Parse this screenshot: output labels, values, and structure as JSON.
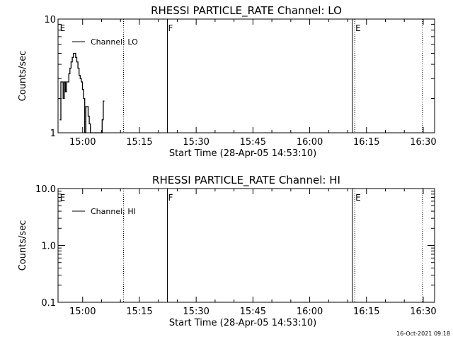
{
  "footer_timestamp": "16-Oct-2021 09:18",
  "chart_data": [
    {
      "type": "line",
      "title": "RHESSI PARTICLE_RATE Channel: LO",
      "xlabel": "Start Time (28-Apr-05 14:53:10)",
      "ylabel": "Counts/sec",
      "x_tick_labels": [
        "15:00",
        "15:15",
        "15:30",
        "15:45",
        "16:00",
        "16:15",
        "16:30"
      ],
      "x_tick_minutes": [
        0,
        15,
        30,
        45,
        60,
        75,
        90
      ],
      "xlim_minutes": [
        -6.5,
        93
      ],
      "y_scale": "log",
      "ylim": [
        1,
        10
      ],
      "y_tick_values": [
        1,
        10
      ],
      "y_tick_labels": [
        "1",
        "10"
      ],
      "legend": {
        "label": "Channel: LO",
        "placement": "top-left"
      },
      "markers": [
        {
          "label": "E",
          "minute": -6.2,
          "style": "none"
        },
        {
          "label": "",
          "minute": 10.8,
          "style": "dotted"
        },
        {
          "label": "F",
          "minute": 22.4,
          "style": "solid"
        },
        {
          "label": "",
          "minute": 71.3,
          "style": "solid"
        },
        {
          "label": "E",
          "minute": 71.9,
          "style": "dotted"
        },
        {
          "label": "",
          "minute": 89.8,
          "style": "dotted"
        }
      ],
      "series": [
        {
          "name": "Channel: LO",
          "x": [
            -5.9,
            -5.6,
            -5.3,
            -5.0,
            -4.7,
            -4.4,
            -4.1,
            -3.8,
            -3.5,
            -3.2,
            -2.9,
            -2.6,
            -2.3,
            -2.0,
            -1.7,
            -1.4,
            -1.1,
            -0.8,
            -0.5,
            -0.2,
            0.1,
            0.4,
            0.7,
            1.0,
            1.3,
            1.6,
            1.9,
            2.2,
            2.5,
            2.8
          ],
          "y": [
            1.3,
            2.8,
            2.8,
            2.0,
            2.8,
            2.3,
            2.8,
            2.8,
            3.3,
            3.7,
            4.2,
            4.6,
            5.0,
            5.0,
            4.6,
            4.2,
            3.7,
            3.2,
            3.0,
            2.8,
            2.4,
            2.0,
            1.0,
            1.7,
            1.7,
            1.4,
            1.2,
            1.0,
            1.0,
            1.0
          ]
        },
        {
          "name": "",
          "x": [
            3.2,
            3.5,
            3.8,
            4.1,
            4.4,
            4.7,
            5.0,
            5.3,
            5.6
          ],
          "y": [
            1.0,
            1.0,
            1.0,
            1.0,
            1.0,
            1.0,
            1.0,
            1.3,
            1.9
          ]
        }
      ]
    },
    {
      "type": "line",
      "title": "RHESSI PARTICLE_RATE Channel: HI",
      "xlabel": "Start Time (28-Apr-05 14:53:10)",
      "ylabel": "Counts/sec",
      "x_tick_labels": [
        "15:00",
        "15:15",
        "15:30",
        "15:45",
        "16:00",
        "16:15",
        "16:30"
      ],
      "x_tick_minutes": [
        0,
        15,
        30,
        45,
        60,
        75,
        90
      ],
      "xlim_minutes": [
        -6.5,
        93
      ],
      "y_scale": "log",
      "ylim": [
        0.1,
        10
      ],
      "y_tick_values": [
        0.1,
        1,
        10
      ],
      "y_tick_labels": [
        "0.1",
        "1.0",
        "10.0"
      ],
      "legend": {
        "label": "Channel: HI",
        "placement": "top-left"
      },
      "markers": [
        {
          "label": "E",
          "minute": -6.2,
          "style": "none"
        },
        {
          "label": "",
          "minute": 10.8,
          "style": "dotted"
        },
        {
          "label": "F",
          "minute": 22.4,
          "style": "solid"
        },
        {
          "label": "",
          "minute": 71.3,
          "style": "solid"
        },
        {
          "label": "E",
          "minute": 71.9,
          "style": "dotted"
        },
        {
          "label": "",
          "minute": 89.8,
          "style": "dotted"
        }
      ],
      "series": [
        {
          "name": "Channel: HI",
          "x": [],
          "y": []
        }
      ]
    }
  ]
}
